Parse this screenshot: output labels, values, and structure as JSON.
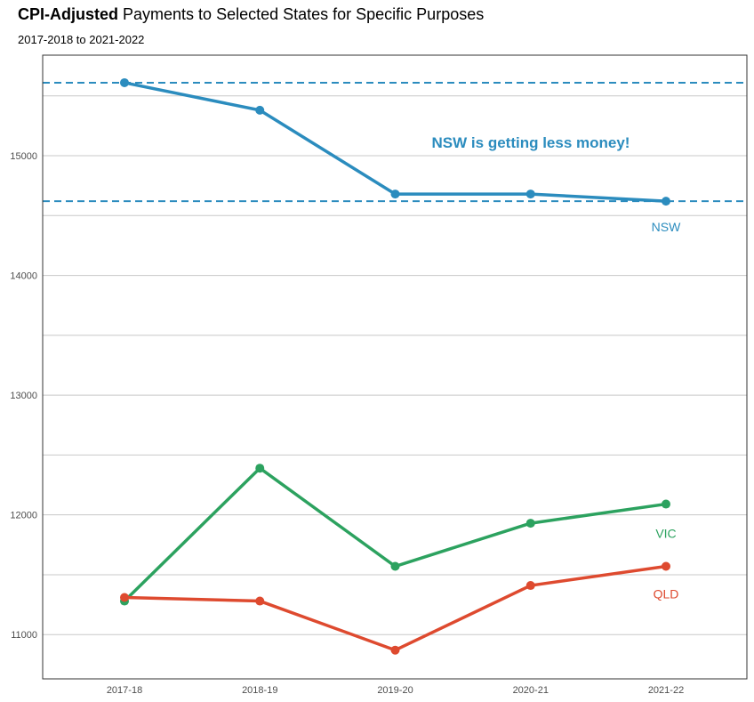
{
  "title_bold": "CPI-Adjusted",
  "title_rest": " Payments to Selected States for Specific Purposes",
  "subtitle": "2017-2018 to 2021-2022",
  "annotation": "NSW is getting less money!",
  "colors": {
    "NSW": "#2b8cbe",
    "VIC": "#2ca25f",
    "QLD": "#de4a2f"
  },
  "chart_data": {
    "type": "line",
    "title": "CPI-Adjusted Payments to Selected States for Specific Purposes",
    "subtitle": "2017-2018 to 2021-2022",
    "categories": [
      "2017-18",
      "2018-19",
      "2019-20",
      "2020-21",
      "2021-22"
    ],
    "series": [
      {
        "name": "NSW",
        "values": [
          15610,
          15380,
          14680,
          14680,
          14620
        ]
      },
      {
        "name": "VIC",
        "values": [
          11280,
          12390,
          11570,
          11930,
          12090
        ]
      },
      {
        "name": "QLD",
        "values": [
          11310,
          11280,
          10870,
          11410,
          11570
        ]
      }
    ],
    "reference_lines": [
      15610,
      14620
    ],
    "yticks": [
      11000,
      12000,
      13000,
      14000,
      15000
    ],
    "ylim": [
      10630,
      15840
    ],
    "grid": true,
    "legend": "direct labels at line ends"
  }
}
